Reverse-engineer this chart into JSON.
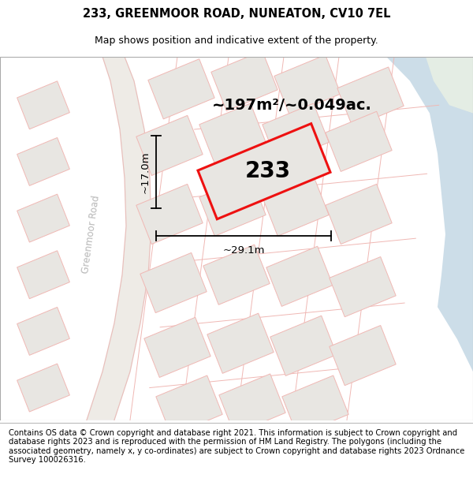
{
  "title_line1": "233, GREENMOOR ROAD, NUNEATON, CV10 7EL",
  "title_line2": "Map shows position and indicative extent of the property.",
  "area_label": "~197m²/~0.049ac.",
  "plot_number": "233",
  "width_label": "~29.1m",
  "height_label": "~17.0m",
  "footer_text": "Contains OS data © Crown copyright and database right 2021. This information is subject to Crown copyright and database rights 2023 and is reproduced with the permission of HM Land Registry. The polygons (including the associated geometry, namely x, y co-ordinates) are subject to Crown copyright and database rights 2023 Ordnance Survey 100026316.",
  "map_bg": "#f7f5f2",
  "road_fill": "#eeebe6",
  "road_edge": "#e8c0bc",
  "plot_fill": "#e8e6e2",
  "plot_edge": "#f0b8b4",
  "plot_outline_red": "#ee1111",
  "water_color": "#ccdde8",
  "green_color": "#e4ede4",
  "dim_color": "#000000",
  "road_label_color": "#b8b8b8",
  "title_fontsize": 10.5,
  "subtitle_fontsize": 9,
  "area_fontsize": 14,
  "plot_num_fontsize": 20,
  "dim_fontsize": 9.5,
  "footer_fontsize": 7.2,
  "road_label_fontsize": 8.5,
  "road_label": "Greenmoor Road"
}
